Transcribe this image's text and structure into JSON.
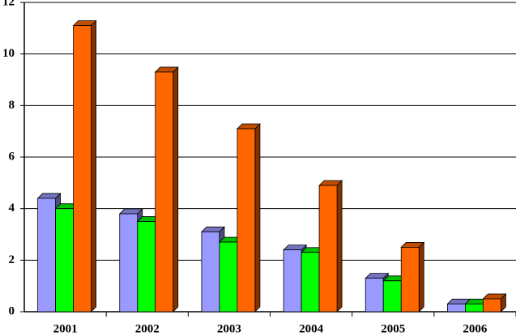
{
  "chart_data": {
    "type": "bar3d",
    "categories": [
      "2001",
      "2002",
      "2003",
      "2004",
      "2005",
      "2006"
    ],
    "series": [
      {
        "color": "#9999ff",
        "values": [
          4.4,
          3.8,
          3.1,
          2.4,
          1.3,
          0.3
        ]
      },
      {
        "color": "#00ff00",
        "values": [
          4.0,
          3.5,
          2.7,
          2.3,
          1.2,
          0.3
        ]
      },
      {
        "color": "#ff6600",
        "values": [
          11.1,
          9.3,
          7.1,
          4.9,
          2.5,
          0.5
        ]
      }
    ],
    "ylim": [
      0,
      12
    ],
    "yticks": [
      0,
      2,
      4,
      6,
      8,
      10,
      12
    ],
    "grid": true
  }
}
